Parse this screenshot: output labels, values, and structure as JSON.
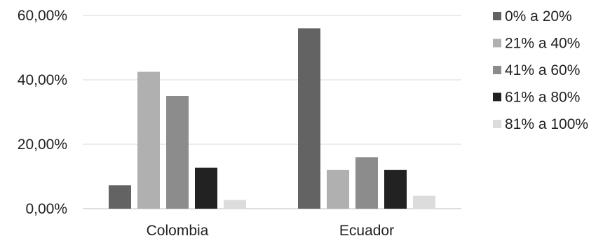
{
  "chart_data": {
    "type": "bar",
    "categories": [
      "Colombia",
      "Ecuador"
    ],
    "series": [
      {
        "name": "0% a 20%",
        "color": "#636363",
        "values": [
          7.3,
          56.0
        ]
      },
      {
        "name": "21% a 40%",
        "color": "#b0b0b0",
        "values": [
          42.5,
          12.0
        ]
      },
      {
        "name": "41% a 60%",
        "color": "#8c8c8c",
        "values": [
          35.0,
          16.0
        ]
      },
      {
        "name": "61% a 80%",
        "color": "#222222",
        "values": [
          12.7,
          12.0
        ]
      },
      {
        "name": "81% a 100%",
        "color": "#dcdcdc",
        "values": [
          2.7,
          4.0
        ]
      }
    ],
    "y_ticks": [
      "0,00%",
      "20,00%",
      "40,00%",
      "60,00%"
    ],
    "ylim": [
      0,
      60
    ],
    "y_unit": "%",
    "grid": true,
    "legend_position": "right"
  }
}
